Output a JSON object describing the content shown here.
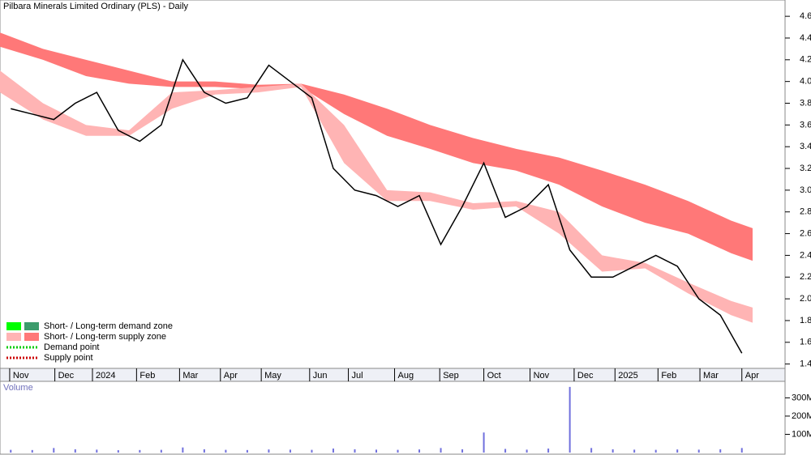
{
  "chart_data": [
    {
      "type": "line",
      "title": "Pilbara Minerals Limited Ordinary (PLS) - Daily",
      "x": [
        1,
        3,
        5,
        7,
        9,
        11,
        13,
        15,
        17,
        19,
        21,
        23,
        25,
        27,
        29,
        31,
        33,
        35,
        37,
        39,
        41,
        43,
        45,
        47,
        49,
        51,
        53,
        55,
        57,
        59,
        61,
        63,
        65,
        67,
        69
      ],
      "series": [
        {
          "color": "#000000",
          "values": [
            3.75,
            3.7,
            3.65,
            3.8,
            3.9,
            3.55,
            3.45,
            3.6,
            4.2,
            3.9,
            3.8,
            3.85,
            4.15,
            4.0,
            3.85,
            3.2,
            3.0,
            2.95,
            2.85,
            2.95,
            2.5,
            2.85,
            3.25,
            2.75,
            2.85,
            3.05,
            2.45,
            2.2,
            2.2,
            2.3,
            2.4,
            2.3,
            2.0,
            1.85,
            1.5
          ]
        }
      ],
      "band_x": [
        0,
        4,
        8,
        12,
        16,
        20,
        24,
        28,
        32,
        36,
        40,
        44,
        48,
        52,
        56,
        60,
        64,
        68,
        70
      ],
      "bands": [
        {
          "color": "#ff7878",
          "upper": [
            4.45,
            4.3,
            4.2,
            4.1,
            4.0,
            4.0,
            3.97,
            3.98,
            3.88,
            3.75,
            3.6,
            3.48,
            3.38,
            3.3,
            3.18,
            3.05,
            2.9,
            2.72,
            2.65
          ],
          "lower": [
            4.32,
            4.2,
            4.05,
            3.98,
            3.95,
            3.95,
            3.93,
            3.95,
            3.7,
            3.5,
            3.38,
            3.25,
            3.18,
            3.05,
            2.85,
            2.7,
            2.6,
            2.42,
            2.35
          ]
        },
        {
          "color": "#ffb4b4",
          "upper": [
            4.1,
            3.8,
            3.6,
            3.55,
            3.9,
            3.92,
            3.95,
            3.98,
            3.6,
            3.0,
            2.98,
            2.88,
            2.9,
            2.8,
            2.4,
            2.33,
            2.15,
            1.98,
            1.92
          ],
          "lower": [
            3.9,
            3.65,
            3.5,
            3.5,
            3.75,
            3.88,
            3.9,
            3.95,
            3.25,
            2.9,
            2.9,
            2.82,
            2.85,
            2.6,
            2.25,
            2.28,
            2.05,
            1.85,
            1.78
          ]
        }
      ],
      "xlim": [
        0,
        70
      ],
      "xticks": [
        {
          "value": 0.9,
          "label": "Nov"
        },
        {
          "value": 5.1,
          "label": "Dec"
        },
        {
          "value": 8.6,
          "label": "2024"
        },
        {
          "value": 12.7,
          "label": "Feb"
        },
        {
          "value": 16.7,
          "label": "Mar"
        },
        {
          "value": 20.5,
          "label": "Apr"
        },
        {
          "value": 24.3,
          "label": "May"
        },
        {
          "value": 28.8,
          "label": "Jun"
        },
        {
          "value": 32.4,
          "label": "Jul"
        },
        {
          "value": 36.7,
          "label": "Aug"
        },
        {
          "value": 40.9,
          "label": "Sep"
        },
        {
          "value": 45.0,
          "label": "Oct"
        },
        {
          "value": 49.3,
          "label": "Nov"
        },
        {
          "value": 53.4,
          "label": "Dec"
        },
        {
          "value": 57.2,
          "label": "2025"
        },
        {
          "value": 61.2,
          "label": "Feb"
        },
        {
          "value": 65.1,
          "label": "Mar"
        },
        {
          "value": 69.0,
          "label": "Apr"
        }
      ],
      "ylim": [
        1.36,
        4.75
      ],
      "yticks": [
        1.4,
        1.6,
        1.8,
        {
          "value": 2,
          "label": "2.0"
        },
        2.2,
        2.4,
        2.6,
        2.8,
        {
          "value": 3,
          "label": "3.0"
        },
        3.2,
        3.4,
        3.6,
        3.8,
        {
          "value": 4,
          "label": "4.0"
        },
        4.2,
        4.4,
        4.6
      ],
      "grid": false,
      "legend": [
        {
          "label": "Short- / Long-term demand zone",
          "colors": [
            "#00ff00",
            "#3c9c6c"
          ]
        },
        {
          "label": "Short- / Long-term supply zone",
          "colors": [
            "#ffb4b4",
            "#ff7878"
          ]
        },
        {
          "label": "Demand point",
          "color": "#00cc00"
        },
        {
          "label": "Supply point",
          "color": "#cc0000"
        }
      ]
    },
    {
      "type": "bar",
      "title": "Volume",
      "x": [
        1,
        3,
        5,
        7,
        9,
        11,
        13,
        15,
        17,
        19,
        21,
        23,
        25,
        27,
        29,
        31,
        33,
        35,
        37,
        39,
        41,
        43,
        45,
        47,
        49,
        51,
        53,
        55,
        57,
        59,
        61,
        63,
        65,
        67,
        69
      ],
      "values": [
        15000000,
        14000000,
        25000000,
        18000000,
        16000000,
        13000000,
        14000000,
        15000000,
        28000000,
        18000000,
        15000000,
        14000000,
        17000000,
        16000000,
        15000000,
        22000000,
        18000000,
        16000000,
        15000000,
        17000000,
        25000000,
        18000000,
        110000000,
        20000000,
        16000000,
        22000000,
        360000000,
        25000000,
        18000000,
        16000000,
        15000000,
        17000000,
        16000000,
        18000000,
        25000000
      ],
      "color": "#7070dd",
      "xlim": [
        0,
        70
      ],
      "ylim": [
        0,
        395000000
      ],
      "yticks": [
        {
          "value": 100000000,
          "label": "100M"
        },
        {
          "value": 200000000,
          "label": "200M"
        },
        {
          "value": 300000000,
          "label": "300M"
        }
      ]
    }
  ]
}
